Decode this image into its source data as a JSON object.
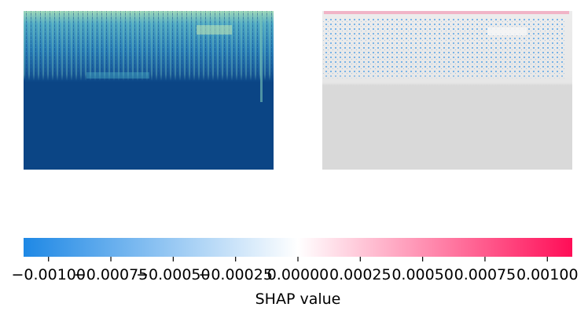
{
  "chart_data": [
    {
      "type": "heatmap",
      "panel": "left",
      "description_values": "spectrogram-like image; brighter (yellow-green) energy concentrated in the upper rows, uniform dark blue in the lower rows",
      "colormap": [
        "#0b4585",
        "#1b6aa8",
        "#2e8bbf",
        "#48a9c4",
        "#7cc8b9",
        "#c7e9b4"
      ],
      "axes_visible": false
    },
    {
      "type": "heatmap",
      "panel": "right",
      "description_values": "SHAP attribution map overlaid on grayscale image; scattered blue (negative) pixels in the upper rows, sparse red (positive) pixels near the top edge",
      "background": "#d9d9d9",
      "axes_visible": false
    },
    {
      "type": "colorbar",
      "xlabel": "SHAP value",
      "vmin": -0.0011,
      "vmax": 0.0011,
      "ticks": [
        -0.001,
        -0.00075,
        -0.0005,
        -0.00025,
        0.0,
        0.00025,
        0.0005,
        0.00075,
        0.001
      ],
      "tick_labels": [
        "−0.00100",
        "−0.00075",
        "−0.00050",
        "−0.00025",
        "0.00000",
        "0.00025",
        "0.00050",
        "0.00075",
        "0.00100"
      ],
      "colors": {
        "negative": "#1e88e5",
        "zero": "#ffffff",
        "positive": "#ff0d57"
      }
    }
  ]
}
